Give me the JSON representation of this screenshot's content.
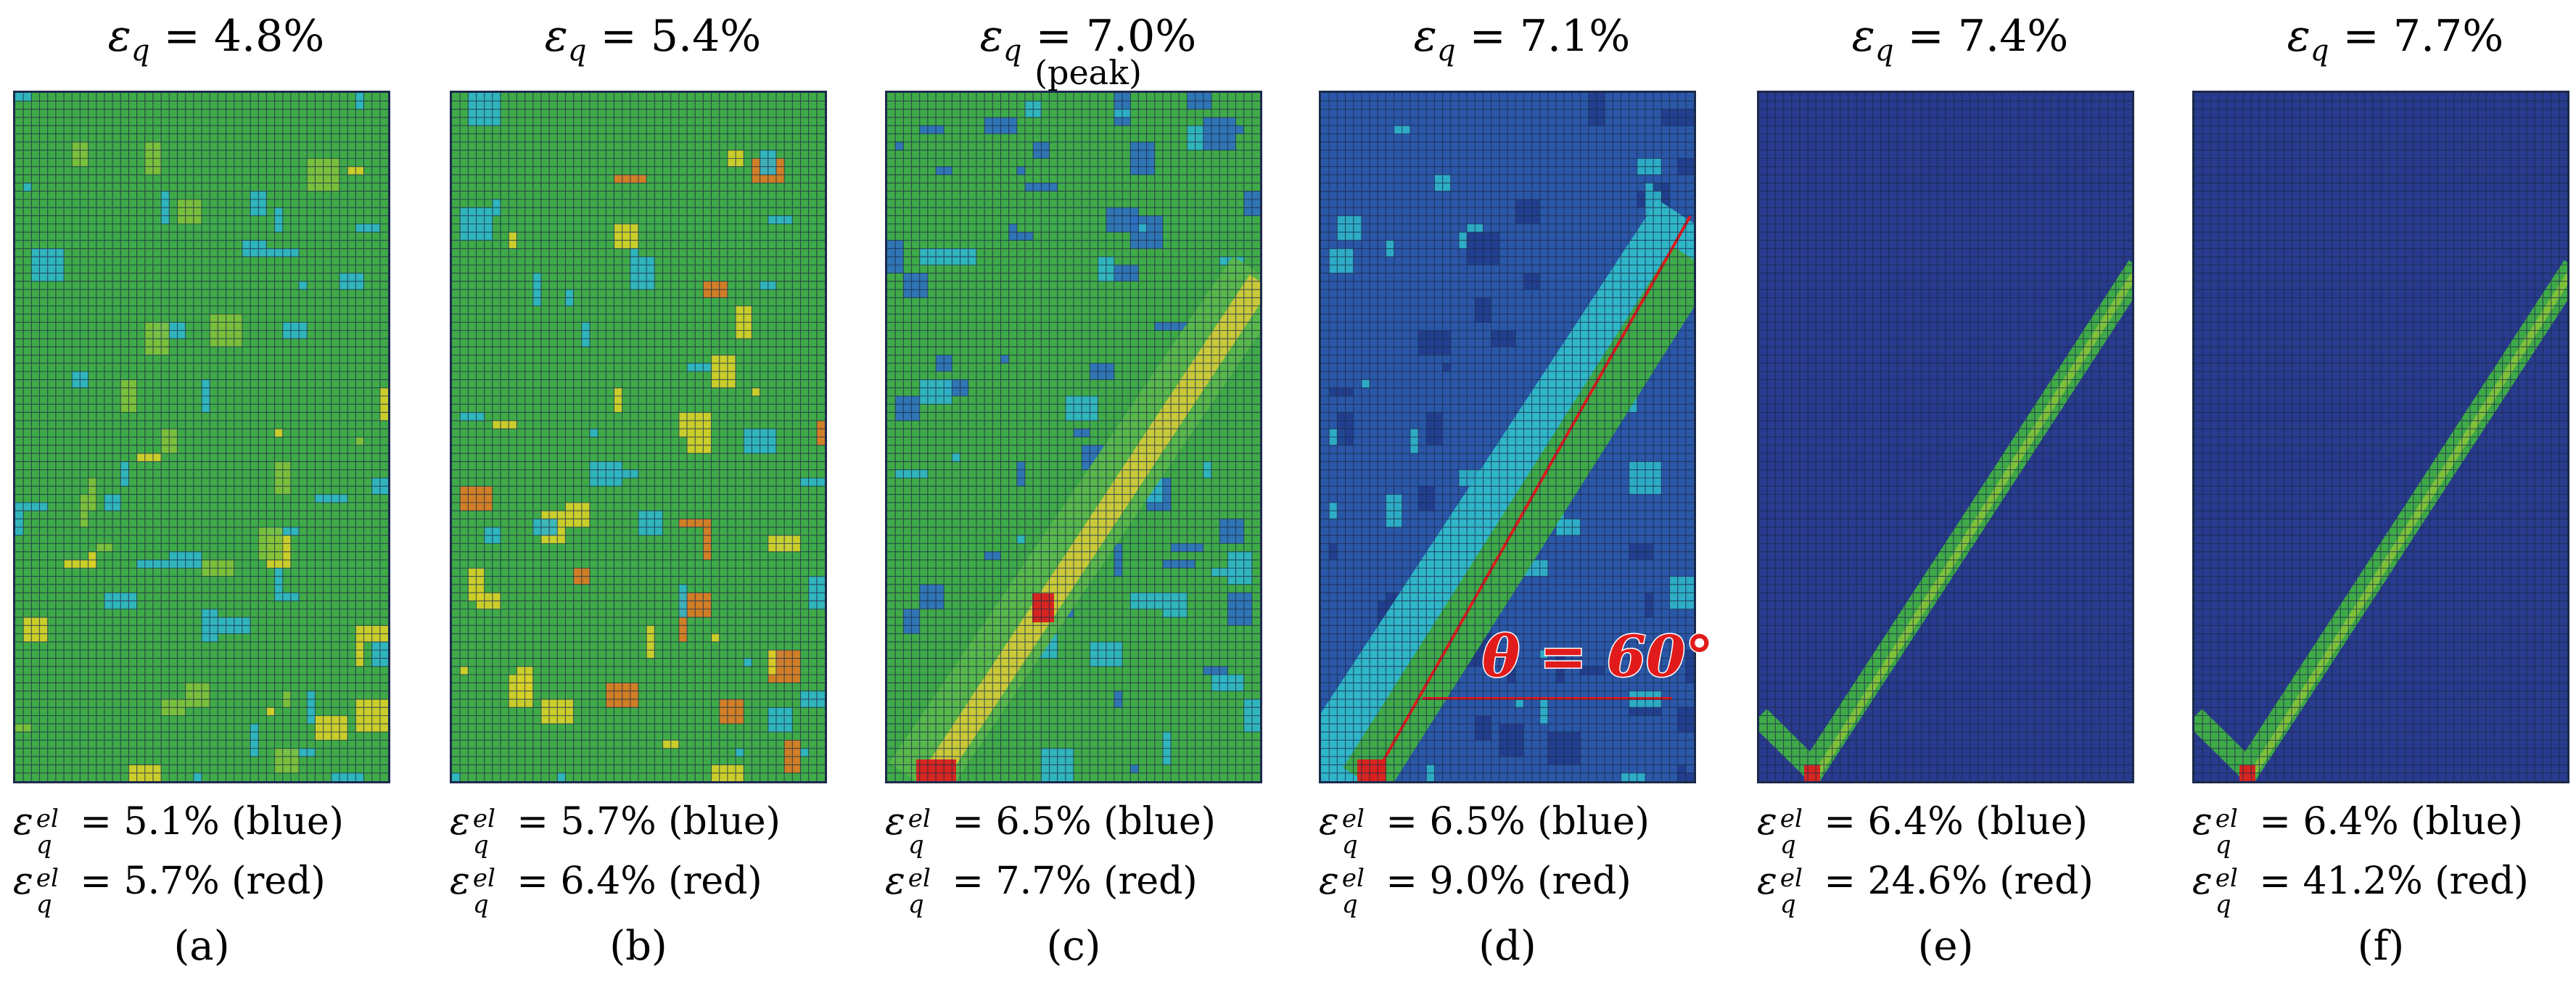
{
  "colors": {
    "blue": "#283b8e",
    "cyan": "#2fb6c9",
    "green": "#3faa48",
    "yellow": "#d8d228",
    "red": "#d62520",
    "grid": "#1c2a4a",
    "annotation": "#e11b1b"
  },
  "panels": [
    {
      "id": "a",
      "title_prefix": "ε",
      "title_sub": "q",
      "title_value": " = 4.8%",
      "note": "",
      "blue_stat": " = 5.1% (blue)",
      "red_stat": " = 5.7% (red)",
      "label": "(a)",
      "pattern": "diffuse-green"
    },
    {
      "id": "b",
      "title_prefix": "ε",
      "title_sub": "q",
      "title_value": " = 5.4%",
      "note": "",
      "blue_stat": " = 5.7% (blue)",
      "red_stat": " = 6.4% (red)",
      "label": "(b)",
      "pattern": "diffuse-green-hotspots"
    },
    {
      "id": "c",
      "title_prefix": "ε",
      "title_sub": "q",
      "title_value": " = 7.0%",
      "note": "(peak)",
      "blue_stat": " = 6.5% (blue)",
      "red_stat": " = 7.7% (red)",
      "label": "(c)",
      "pattern": "emerging-band"
    },
    {
      "id": "d",
      "title_prefix": "ε",
      "title_sub": "q",
      "title_value": " = 7.1%",
      "note": "",
      "blue_stat": " = 6.5% (blue)",
      "red_stat": " = 9.0% (red)",
      "label": "(d)",
      "pattern": "band-with-angle"
    },
    {
      "id": "e",
      "title_prefix": "ε",
      "title_sub": "q",
      "title_value": " = 7.4%",
      "note": "",
      "blue_stat": " = 6.4% (blue)",
      "red_stat": " = 24.6% (red)",
      "label": "(e)",
      "pattern": "localized-band"
    },
    {
      "id": "f",
      "title_prefix": "ε",
      "title_sub": "q",
      "title_value": " = 7.7%",
      "note": "",
      "blue_stat": " = 6.4% (blue)",
      "red_stat": " = 41.2% (red)",
      "label": "(f)",
      "pattern": "localized-band"
    }
  ],
  "stat_symbol": "ε",
  "stat_sup": "el",
  "stat_sub": "q",
  "angle_annotation": "θ = 60°"
}
